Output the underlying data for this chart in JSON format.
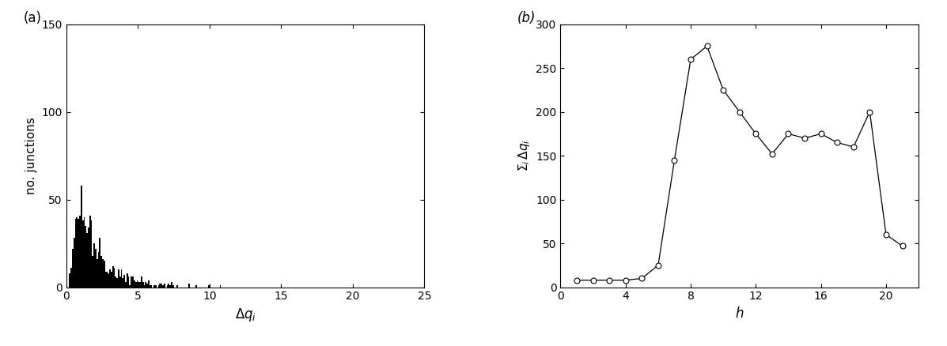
{
  "panel_a": {
    "label": "(a)",
    "xlabel": "Δq_i",
    "ylabel": "no. junctions",
    "xlim": [
      0,
      25
    ],
    "ylim": [
      0,
      150
    ],
    "xticks": [
      0,
      5,
      10,
      15,
      20,
      25
    ],
    "yticks": [
      0,
      50,
      100,
      150
    ],
    "hist_color": "#000000"
  },
  "panel_b": {
    "label": "(b)",
    "xlabel": "h",
    "ylabel": "Σ_i Δq_i",
    "xlim": [
      0,
      22
    ],
    "ylim": [
      0,
      300
    ],
    "xticks": [
      0,
      4,
      8,
      12,
      16,
      20
    ],
    "yticks": [
      0,
      50,
      100,
      150,
      200,
      250,
      300
    ],
    "x": [
      1,
      2,
      3,
      4,
      5,
      6,
      7,
      8,
      9,
      10,
      11,
      12,
      13,
      14,
      15,
      16,
      17,
      18,
      19,
      20,
      21
    ],
    "y": [
      8,
      8,
      8,
      8,
      10,
      25,
      145,
      260,
      275,
      225,
      200,
      175,
      152,
      175,
      170,
      175,
      165,
      160,
      200,
      60,
      47
    ],
    "line_color": "#000000",
    "marker": "o",
    "marker_size": 5,
    "marker_facecolor": "white",
    "marker_edgecolor": "#000000"
  }
}
